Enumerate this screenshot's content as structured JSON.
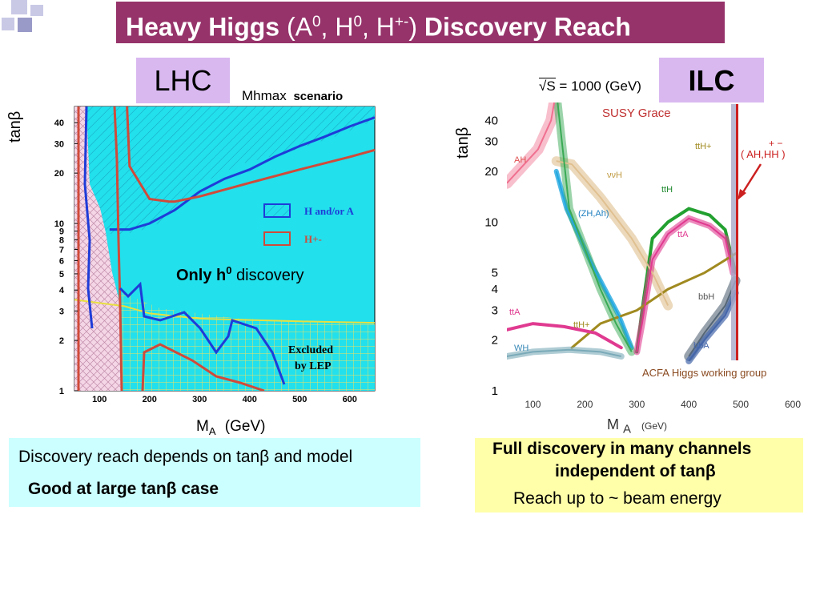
{
  "slide": {
    "title_parts": {
      "main": "Heavy Higgs",
      "paren_open": "(A",
      "sup1": "0",
      "mid1": ", H",
      "sup2": "0",
      "mid2": ", H",
      "sup3": "+-",
      "paren_close": ")",
      "end": "Discovery Reach"
    },
    "colors": {
      "title_bg": "#96336a",
      "tag_bg": "#d9b8f0",
      "cyan_box": "#ccffff",
      "yellow_box": "#ffffaa"
    }
  },
  "lhc": {
    "tag": "LHC",
    "scenario_prefix": "Mhmax",
    "scenario": "scenario",
    "ylabel": "tanβ",
    "xlabel_main": "M",
    "xlabel_sub": "A",
    "xlabel_unit": "(GeV)",
    "region_label_bold": "Only h",
    "region_label_sup": "0",
    "region_label_rest": " discovery",
    "excluded_line1": "Excluded",
    "excluded_line2": "by LEP"
  },
  "ilc": {
    "tag": "ILC",
    "energy_label": "= 1000 (GeV)",
    "sqrt_s": "S",
    "susy_grace": "SUSY Grace",
    "ylabel": "tanβ",
    "xlabel_main": "M",
    "xlabel_sub": "A",
    "xlabel_unit": "(GeV)",
    "working_group": "ACFA Higgs working group",
    "charged_label_line1": "+  −",
    "charged_label_line2": "( AH,HH )"
  },
  "bottom_left": {
    "line1": "Discovery reach depends on tanβ and model",
    "line2": "Good at large tanβ case"
  },
  "bottom_right": {
    "line1": "Full discovery in many channels",
    "line2": "independent of tanβ",
    "line3": "Reach up to ~ beam energy"
  },
  "chart_data": [
    {
      "type": "area",
      "xlim": [
        50,
        650
      ],
      "ylim": [
        1,
        50
      ],
      "yscale": "log",
      "x_ticks": [
        100,
        200,
        300,
        400,
        500,
        600
      ],
      "y_ticks": [
        1,
        2,
        3,
        4,
        5,
        6,
        7,
        8,
        9,
        10,
        20,
        30,
        40
      ],
      "legend": {
        "placement": "right",
        "entries": [
          "H and/or A",
          "H+-"
        ]
      },
      "series": [
        {
          "name": "H and/or A",
          "x": [
            120,
            140,
            160,
            200,
            250,
            300,
            350,
            400,
            450,
            500,
            550,
            600,
            650
          ],
          "y": [
            9.2,
            9.2,
            9.2,
            10,
            12,
            15.5,
            18.5,
            21,
            25,
            29,
            33,
            38,
            43
          ]
        },
        {
          "name": "H+-",
          "x": [
            155,
            160,
            200,
            240,
            250,
            300,
            400,
            500,
            600,
            650
          ],
          "y": [
            50,
            22,
            14,
            13.5,
            13.5,
            14.5,
            17.5,
            21,
            25,
            27.5
          ]
        },
        {
          "name": "Excluded by LEP",
          "x": [
            50,
            150,
            200,
            300,
            400,
            500,
            650
          ],
          "y": [
            3.5,
            3.2,
            2.9,
            2.7,
            2.65,
            2.6,
            2.55
          ]
        }
      ]
    },
    {
      "type": "line",
      "xlim": [
        50,
        600
      ],
      "ylim": [
        1.5,
        50
      ],
      "yscale": "log",
      "x_ticks": [
        100,
        200,
        300,
        400,
        500,
        600
      ],
      "y_ticks": [
        1,
        2,
        3,
        4,
        5,
        10,
        20,
        30,
        40
      ],
      "series": [
        {
          "name": "AH",
          "x": [
            50,
            110,
            135,
            145
          ],
          "y": [
            17,
            27,
            40,
            60
          ]
        },
        {
          "name": "ννH",
          "x": [
            145,
            175,
            230,
            290,
            330,
            360
          ],
          "y": [
            23,
            22,
            14,
            8,
            5,
            3.2
          ]
        },
        {
          "name": "(ZH,Ah)",
          "x": [
            145,
            165,
            215,
            265,
            290
          ],
          "y": [
            20,
            12,
            5.5,
            2.8,
            1.8
          ]
        },
        {
          "name": "ttH",
          "x": [
            145,
            170,
            230,
            260,
            290
          ],
          "y": [
            60,
            12,
            4,
            2.5,
            1.7
          ]
        },
        {
          "name": "ttH",
          "x": [
            300,
            310,
            330,
            360,
            400,
            440,
            470,
            490
          ],
          "y": [
            1.7,
            3,
            8,
            10,
            12,
            11,
            9,
            5
          ]
        },
        {
          "name": "ttA",
          "x": [
            300,
            310,
            330,
            360,
            400,
            440,
            470,
            485
          ],
          "y": [
            1.7,
            2.5,
            6,
            8.5,
            10.5,
            9.5,
            8,
            5
          ]
        },
        {
          "name": "ttH+",
          "x": [
            175,
            230,
            300,
            360,
            430,
            490
          ],
          "y": [
            1.8,
            2.5,
            3,
            4,
            5,
            6.5
          ]
        },
        {
          "name": "bbH",
          "x": [
            400,
            430,
            470,
            490
          ],
          "y": [
            1.6,
            2.2,
            3.2,
            4.5
          ]
        },
        {
          "name": "bbA",
          "x": [
            400,
            430,
            470,
            490
          ],
          "y": [
            1.5,
            2.0,
            2.8,
            3.8
          ]
        },
        {
          "name": "ttA",
          "x": [
            50,
            100,
            160,
            220,
            270
          ],
          "y": [
            2.3,
            2.5,
            2.4,
            2.2,
            1.8
          ]
        },
        {
          "name": "WH",
          "x": [
            50,
            100,
            170,
            230,
            270
          ],
          "y": [
            1.6,
            1.7,
            1.75,
            1.7,
            1.6
          ]
        }
      ]
    }
  ]
}
